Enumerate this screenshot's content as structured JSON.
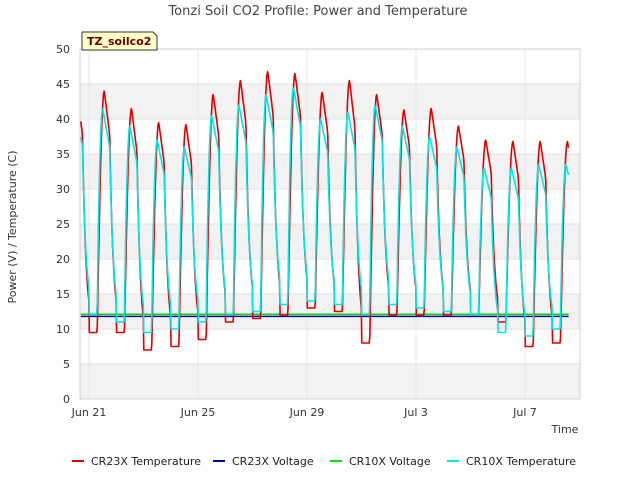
{
  "chart_data": {
    "type": "line",
    "title": "Tonzi Soil CO2 Profile: Power and Temperature",
    "xlabel": "Time",
    "ylabel": "Power (V) / Temperature (C)",
    "site_badge": "TZ_soilco2",
    "ylim": [
      0,
      50
    ],
    "yticks": [
      0,
      5,
      10,
      15,
      20,
      25,
      30,
      35,
      40,
      45,
      50
    ],
    "xlim": [
      "Jun 21",
      "Jul 9"
    ],
    "xticks": [
      {
        "label": "Jun 21",
        "day": 0
      },
      {
        "label": "Jun 25",
        "day": 4
      },
      {
        "label": "Jun 29",
        "day": 8
      },
      {
        "label": "Jul 3",
        "day": 12
      },
      {
        "label": "Jul 7",
        "day": 16
      }
    ],
    "grid": true,
    "legend_position": "bottom",
    "series": [
      {
        "name": "CR23X Temperature",
        "color": "#e00000",
        "daily_min": [
          9.5,
          9.5,
          7.0,
          7.5,
          8.5,
          11.0,
          11.5,
          12.0,
          13.0,
          12.5,
          8.0,
          12.0,
          12.0,
          12.0,
          12.0,
          11.0,
          7.5,
          8.0,
          9.0,
          12.0
        ],
        "daily_max": [
          44.0,
          41.5,
          39.5,
          39.2,
          43.5,
          45.5,
          46.8,
          46.5,
          43.8,
          45.5,
          43.5,
          41.3,
          41.5,
          39.0,
          37.0,
          36.8,
          36.8
        ]
      },
      {
        "name": "CR23X Voltage",
        "color": "#0000aa",
        "values": [
          11.8,
          11.8,
          11.8,
          11.8,
          11.8,
          11.8,
          11.8,
          11.8,
          11.8,
          11.8,
          11.8,
          11.8,
          11.8,
          11.8,
          11.8,
          11.8,
          11.8,
          11.8
        ]
      },
      {
        "name": "CR10X Voltage",
        "color": "#00dd00",
        "values": [
          12.1,
          12.1,
          12.1,
          12.1,
          12.1,
          12.1,
          12.1,
          12.1,
          12.1,
          12.1,
          12.1,
          12.1,
          12.1,
          12.1,
          12.1,
          12.1,
          12.1,
          12.1
        ]
      },
      {
        "name": "CR10X Temperature",
        "color": "#00e5e5",
        "daily_min": [
          12.0,
          11.0,
          9.5,
          10.0,
          11.0,
          12.0,
          12.5,
          13.5,
          14.0,
          13.5,
          12.0,
          13.5,
          13.0,
          12.5,
          12.0,
          9.5,
          9.0,
          10.0,
          11.0,
          14.5
        ],
        "daily_max": [
          41.5,
          39.0,
          37.0,
          36.0,
          40.5,
          42.0,
          43.5,
          44.5,
          40.0,
          41.0,
          42.0,
          39.0,
          37.5,
          36.0,
          33.0,
          33.0,
          33.5
        ]
      }
    ]
  }
}
